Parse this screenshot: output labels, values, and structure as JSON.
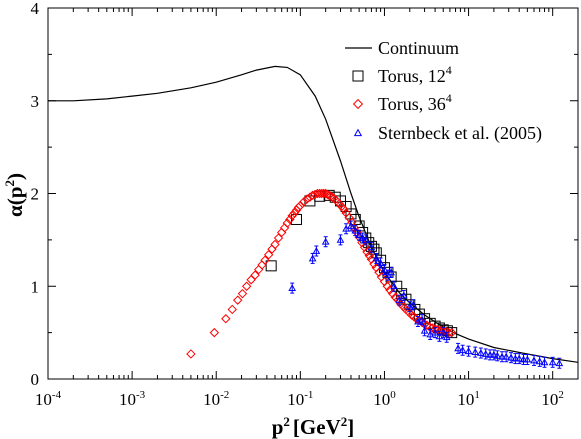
{
  "chart_data": {
    "type": "scatter",
    "title": "",
    "xlabel": "p",
    "xlabel_exp": "2",
    "xlabel_unit": "[GeV",
    "xlabel_unit_exp": "2",
    "xlabel_close": "]",
    "ylabel": "α(p",
    "ylabel_exp": "2",
    "ylabel_close": ")",
    "xscale": "log",
    "xlim": [
      0.0001,
      200
    ],
    "ylim": [
      0,
      4
    ],
    "grid": false,
    "legend_position": "top-right",
    "x_tick_labels": [
      {
        "base": "10",
        "exp": "-4",
        "value": 0.0001
      },
      {
        "base": "10",
        "exp": "-3",
        "value": 0.001
      },
      {
        "base": "10",
        "exp": "-2",
        "value": 0.01
      },
      {
        "base": "10",
        "exp": "-1",
        "value": 0.1
      },
      {
        "base": "10",
        "exp": "0",
        "value": 1
      },
      {
        "base": "10",
        "exp": "1",
        "value": 10
      },
      {
        "base": "10",
        "exp": "2",
        "value": 100
      }
    ],
    "y_ticks": [
      0,
      1,
      2,
      3,
      4
    ],
    "y_tick_labels": [
      "0",
      "1",
      "2",
      "3",
      "4"
    ],
    "series": [
      {
        "name": "Continuum",
        "exp": "",
        "kind": "line",
        "color": "#000000",
        "x": [
          0.0001,
          0.0002,
          0.0005,
          0.001,
          0.002,
          0.005,
          0.01,
          0.02,
          0.03,
          0.05,
          0.07,
          0.1,
          0.15,
          0.2,
          0.3,
          0.4,
          0.5,
          0.7,
          1,
          1.5,
          2,
          3,
          5,
          7,
          10,
          20,
          50,
          100,
          200
        ],
        "y": [
          3.0,
          3.0,
          3.02,
          3.05,
          3.08,
          3.14,
          3.2,
          3.28,
          3.33,
          3.37,
          3.36,
          3.28,
          3.05,
          2.8,
          2.35,
          2.0,
          1.75,
          1.42,
          1.15,
          0.93,
          0.82,
          0.69,
          0.56,
          0.49,
          0.43,
          0.34,
          0.27,
          0.22,
          0.18
        ]
      },
      {
        "name": "Torus, 12",
        "exp": "4",
        "kind": "square",
        "color": "#000000",
        "x": [
          0.045,
          0.09,
          0.13,
          0.17,
          0.22,
          0.26,
          0.3,
          0.35,
          0.4,
          0.45,
          0.5,
          0.55,
          0.6,
          0.65,
          0.7,
          0.75,
          0.8,
          0.9,
          1.0,
          1.1,
          1.2,
          1.4,
          1.6,
          1.8,
          2.0,
          2.3,
          2.6,
          3.0,
          3.5,
          4.0,
          4.5,
          5.0,
          5.6,
          6.3
        ],
        "y": [
          1.22,
          1.72,
          1.92,
          1.97,
          1.98,
          1.96,
          1.92,
          1.86,
          1.78,
          1.72,
          1.65,
          1.58,
          1.52,
          1.47,
          1.43,
          1.4,
          1.36,
          1.28,
          1.2,
          1.15,
          1.1,
          1.0,
          0.92,
          0.86,
          0.8,
          0.75,
          0.7,
          0.65,
          0.6,
          0.57,
          0.55,
          0.53,
          0.52,
          0.5
        ]
      },
      {
        "name": "Torus, 36",
        "exp": "4",
        "kind": "diamond",
        "color": "#ff0000",
        "x": [
          0.005,
          0.0095,
          0.013,
          0.0155,
          0.018,
          0.0205,
          0.023,
          0.026,
          0.029,
          0.032,
          0.035,
          0.038,
          0.042,
          0.046,
          0.05,
          0.055,
          0.06,
          0.065,
          0.07,
          0.075,
          0.08,
          0.085,
          0.09,
          0.095,
          0.1,
          0.11,
          0.12,
          0.13,
          0.14,
          0.15,
          0.16,
          0.17,
          0.18,
          0.19,
          0.2,
          0.21,
          0.22,
          0.23,
          0.24,
          0.25,
          0.27,
          0.29,
          0.31,
          0.33,
          0.35,
          0.38,
          0.41,
          0.44,
          0.47,
          0.5,
          0.54,
          0.58,
          0.62,
          0.66,
          0.7,
          0.75,
          0.8,
          0.86,
          0.92,
          1.0,
          1.08,
          1.16,
          1.25,
          1.35,
          1.45,
          1.56,
          1.68,
          1.8,
          1.95,
          2.1,
          2.25,
          2.4,
          2.6,
          2.8,
          3.0,
          3.2,
          3.45,
          3.7,
          4.0,
          4.3,
          4.6,
          5.0,
          5.4,
          5.8,
          6.3
        ],
        "y": [
          0.27,
          0.5,
          0.65,
          0.75,
          0.85,
          0.92,
          1.0,
          1.07,
          1.12,
          1.18,
          1.23,
          1.28,
          1.34,
          1.4,
          1.45,
          1.52,
          1.58,
          1.63,
          1.68,
          1.72,
          1.76,
          1.79,
          1.82,
          1.85,
          1.87,
          1.91,
          1.94,
          1.96,
          1.98,
          1.99,
          2.0,
          2.0,
          2.0,
          2.0,
          2.0,
          1.99,
          1.98,
          1.97,
          1.96,
          1.95,
          1.92,
          1.89,
          1.86,
          1.83,
          1.79,
          1.74,
          1.69,
          1.63,
          1.58,
          1.53,
          1.47,
          1.42,
          1.37,
          1.33,
          1.29,
          1.24,
          1.2,
          1.15,
          1.1,
          1.05,
          1.0,
          0.96,
          0.92,
          0.88,
          0.85,
          0.81,
          0.78,
          0.75,
          0.72,
          0.69,
          0.67,
          0.65,
          0.63,
          0.61,
          0.59,
          0.58,
          0.56,
          0.55,
          0.54,
          0.53,
          0.52,
          0.51,
          0.51,
          0.5,
          0.5
        ]
      },
      {
        "name": "Sternbeck et al. (2005)",
        "exp": "",
        "kind": "triangle",
        "color": "#0000ff",
        "x": [
          0.08,
          0.14,
          0.155,
          0.2,
          0.3,
          0.35,
          0.4,
          0.45,
          0.5,
          0.55,
          0.6,
          0.7,
          0.8,
          0.9,
          1.0,
          1.1,
          1.2,
          1.3,
          1.5,
          1.7,
          2.0,
          2.2,
          2.5,
          2.8,
          3.0,
          3.5,
          4.0,
          4.5,
          5.0,
          5.5,
          7.5,
          8.5,
          10,
          12,
          14,
          16,
          18,
          20,
          22,
          25,
          28,
          32,
          36,
          40,
          45,
          50,
          60,
          70,
          80,
          100,
          120
        ],
        "y": [
          0.98,
          1.3,
          1.38,
          1.48,
          1.5,
          1.62,
          1.65,
          1.6,
          1.55,
          1.52,
          1.5,
          1.42,
          1.3,
          1.25,
          1.18,
          1.12,
          1.15,
          1.0,
          0.85,
          0.9,
          0.78,
          0.8,
          0.62,
          0.64,
          0.52,
          0.48,
          0.5,
          0.46,
          0.5,
          0.45,
          0.33,
          0.31,
          0.3,
          0.29,
          0.28,
          0.27,
          0.26,
          0.26,
          0.25,
          0.24,
          0.24,
          0.23,
          0.22,
          0.22,
          0.21,
          0.21,
          0.2,
          0.19,
          0.18,
          0.18,
          0.17
        ]
      }
    ]
  }
}
